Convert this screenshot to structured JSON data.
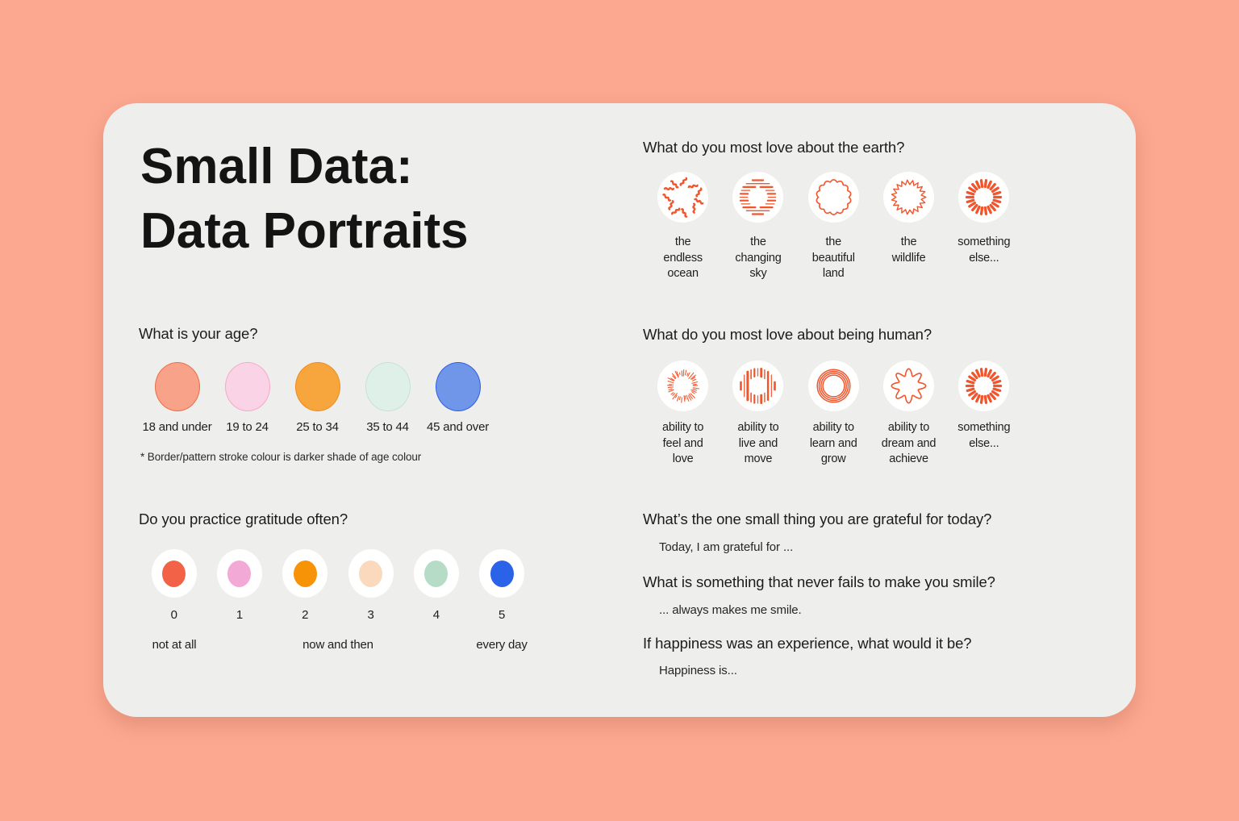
{
  "title": {
    "line1": "Small Data:",
    "line2": "Data Portraits"
  },
  "age": {
    "question": "What is your age?",
    "options": [
      {
        "label": "18 and under",
        "fill": "#F8A289",
        "border": "#EE6B45"
      },
      {
        "label": "19 to 24",
        "fill": "#FBD3E6",
        "border": "#F5A8CB"
      },
      {
        "label": "25 to 34",
        "fill": "#F7A63D",
        "border": "#EE8C1E"
      },
      {
        "label": "35 to 44",
        "fill": "#DFF0E8",
        "border": "#C3E4D2"
      },
      {
        "label": "45 and over",
        "fill": "#6F96E8",
        "border": "#2E5FE0"
      }
    ],
    "note": "* Border/pattern stroke colour is darker shade of age colour"
  },
  "gratitude": {
    "question": "Do you practice gratitude often?",
    "options": [
      {
        "value": "0",
        "color": "#F26247"
      },
      {
        "value": "1",
        "color": "#F3A9D6"
      },
      {
        "value": "2",
        "color": "#F79307"
      },
      {
        "value": "3",
        "color": "#FAD9BD"
      },
      {
        "value": "4",
        "color": "#B6DCC7"
      },
      {
        "value": "5",
        "color": "#2A62E8"
      }
    ],
    "scale": {
      "min": "not at all",
      "mid": "now and then",
      "max": "every day"
    }
  },
  "earth": {
    "question": "What do you most love about the earth?",
    "options": [
      {
        "label": "the\nendless\nocean",
        "icon": "ocean-squiggles"
      },
      {
        "label": "the\nchanging\nsky",
        "icon": "sky-lines"
      },
      {
        "label": "the\nbeautiful\nland",
        "icon": "land-scallop"
      },
      {
        "label": "the\nwildlife",
        "icon": "wildlife-zigzag"
      },
      {
        "label": "something\nelse...",
        "icon": "sunburst-dashes"
      }
    ]
  },
  "human": {
    "question": "What do you most love about being human?",
    "options": [
      {
        "label": "ability to\nfeel and\nlove",
        "icon": "love-rays"
      },
      {
        "label": "ability to\nlive and\nmove",
        "icon": "move-bars"
      },
      {
        "label": "ability to\nlearn and\ngrow",
        "icon": "grow-rings"
      },
      {
        "label": "ability to\ndream and\nachieve",
        "icon": "dream-star"
      },
      {
        "label": "something\nelse...",
        "icon": "sunburst-dashes"
      }
    ]
  },
  "prompts": [
    {
      "question": "What’s the one small thing you are grateful for today?",
      "answer": "Today, I am grateful for ..."
    },
    {
      "question": "What is something that never fails to make you smile?",
      "answer": "... always makes me smile."
    },
    {
      "question": "If happiness was an experience, what would it be?",
      "answer": "Happiness is..."
    }
  ],
  "colors": {
    "background": "#FCA890",
    "card": "#EEEEEC",
    "icon_stroke": "#F2552B",
    "text": "#1C1C1C"
  }
}
